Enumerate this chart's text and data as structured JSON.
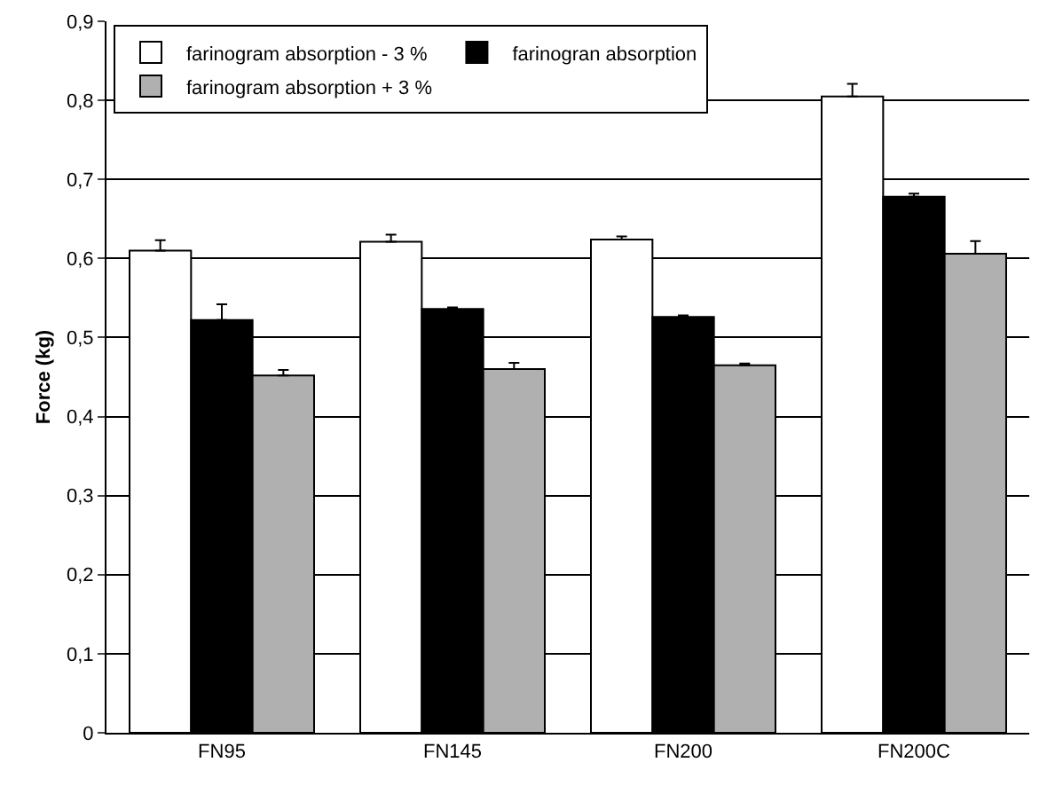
{
  "chart_data": {
    "type": "bar",
    "ylabel": "Force (kg)",
    "categories": [
      "FN95",
      "FN145",
      "FN200",
      "FN200C"
    ],
    "series": [
      {
        "name": "farinogram absorption - 3 %",
        "color": "#ffffff",
        "values": [
          0.61,
          0.621,
          0.624,
          0.805
        ],
        "errors": [
          [
            0.61,
            0.623
          ],
          [
            0.621,
            0.63
          ],
          [
            0.624,
            0.628
          ],
          [
            0.805,
            0.821
          ]
        ]
      },
      {
        "name": "farinogran absorption",
        "color": "#000000",
        "values": [
          0.522,
          0.536,
          0.526,
          0.678
        ],
        "errors": [
          [
            0.522,
            0.542
          ],
          [
            0.536,
            0.538
          ],
          [
            0.526,
            0.528
          ],
          [
            0.678,
            0.682
          ]
        ]
      },
      {
        "name": "farinogram absorption + 3 %",
        "color": "#b0b0b0",
        "values": [
          0.452,
          0.46,
          0.465,
          0.606
        ],
        "errors": [
          [
            0.452,
            0.459
          ],
          [
            0.46,
            0.468
          ],
          [
            0.465,
            0.467
          ],
          [
            0.606,
            0.622
          ]
        ]
      }
    ],
    "ylim": [
      0,
      0.9
    ],
    "yticks": [
      {
        "value": 0,
        "label": "0"
      },
      {
        "value": 0.1,
        "label": "0,1"
      },
      {
        "value": 0.2,
        "label": "0,2"
      },
      {
        "value": 0.3,
        "label": "0,3"
      },
      {
        "value": 0.4,
        "label": "0,4"
      },
      {
        "value": 0.5,
        "label": "0,5"
      },
      {
        "value": 0.6,
        "label": "0,6"
      },
      {
        "value": 0.7,
        "label": "0,7"
      },
      {
        "value": 0.8,
        "label": "0,8"
      },
      {
        "value": 0.9,
        "label": "0,9"
      }
    ],
    "grid": "y",
    "legend": "top left"
  }
}
